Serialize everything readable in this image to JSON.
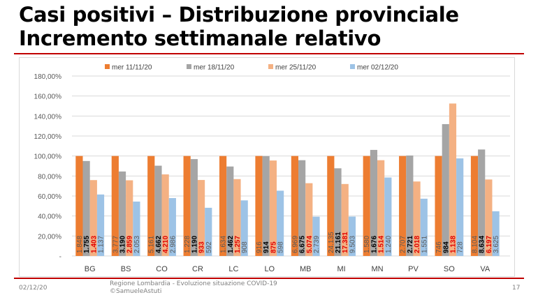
{
  "title_line1": "Casi positivi – Distribuzione provinciale",
  "title_line2": "Incremento settimanale relativo",
  "footer": {
    "date": "02/12/20",
    "source_line1": "Regione Lombardia - Evoluzione situazione COVID-19",
    "source_line2": "©SamueleAstuti",
    "page": "17"
  },
  "chart_data": {
    "type": "bar",
    "title": "",
    "xlabel": "",
    "ylabel": "",
    "ylim": [
      0,
      180
    ],
    "yticks": [
      "-",
      "20,00%",
      "40,00%",
      "60,00%",
      "80,00%",
      "100,00%",
      "120,00%",
      "140,00%",
      "160,00%",
      "180,00%"
    ],
    "grid": true,
    "legend": "top",
    "categories": [
      "BG",
      "BS",
      "CO",
      "CR",
      "LC",
      "LO",
      "MB",
      "MI",
      "MN",
      "PV",
      "SO",
      "VA"
    ],
    "series": [
      {
        "name": "mer 11/11/20",
        "color": "#ED7D31",
        "label_color": "#595959",
        "values": [
          100,
          100,
          100,
          100,
          100,
          100,
          100,
          100,
          100,
          100,
          100,
          100
        ],
        "labels": [
          "1.848",
          "3.777",
          "5.161",
          "1.228",
          "1.634",
          "916",
          "6.969",
          "24.135",
          "1.580",
          "2.707",
          "746",
          "8.104"
        ]
      },
      {
        "name": "mer 18/11/20",
        "color": "#A5A5A5",
        "label_color": "#000000",
        "values": [
          95.0,
          84.5,
          90.3,
          96.9,
          89.5,
          99.8,
          95.8,
          87.7,
          106.1,
          100.5,
          131.9,
          106.5
        ],
        "labels": [
          "1.755",
          "3.190",
          "4.662",
          "1.190",
          "1.462",
          "914",
          "6.675",
          "21.161",
          "1.676",
          "2.721",
          "984",
          "8.634"
        ]
      },
      {
        "name": "mer 25/11/20",
        "color": "#F4B183",
        "label_color": "#E00000",
        "values": [
          75.9,
          75.7,
          81.6,
          76.0,
          76.9,
          95.5,
          72.8,
          72.0,
          95.8,
          74.5,
          152.5,
          76.5
        ],
        "labels": [
          "1.403",
          "2.859",
          "4.210",
          "933",
          "1.257",
          "875",
          "5.074",
          "17.381",
          "1.514",
          "2.018",
          "1.138",
          "6.197"
        ]
      },
      {
        "name": "mer 02/12/20",
        "color": "#9DC3E6",
        "label_color": "#595959",
        "values": [
          61.5,
          54.4,
          57.9,
          48.2,
          55.6,
          65.3,
          39.3,
          39.4,
          78.5,
          57.3,
          97.6,
          44.7
        ],
        "labels": [
          "1.137",
          "2.053",
          "2.986",
          "592",
          "908",
          "598",
          "2.739",
          "9.503",
          "1.240",
          "1.551",
          "728",
          "3.625"
        ]
      }
    ]
  }
}
